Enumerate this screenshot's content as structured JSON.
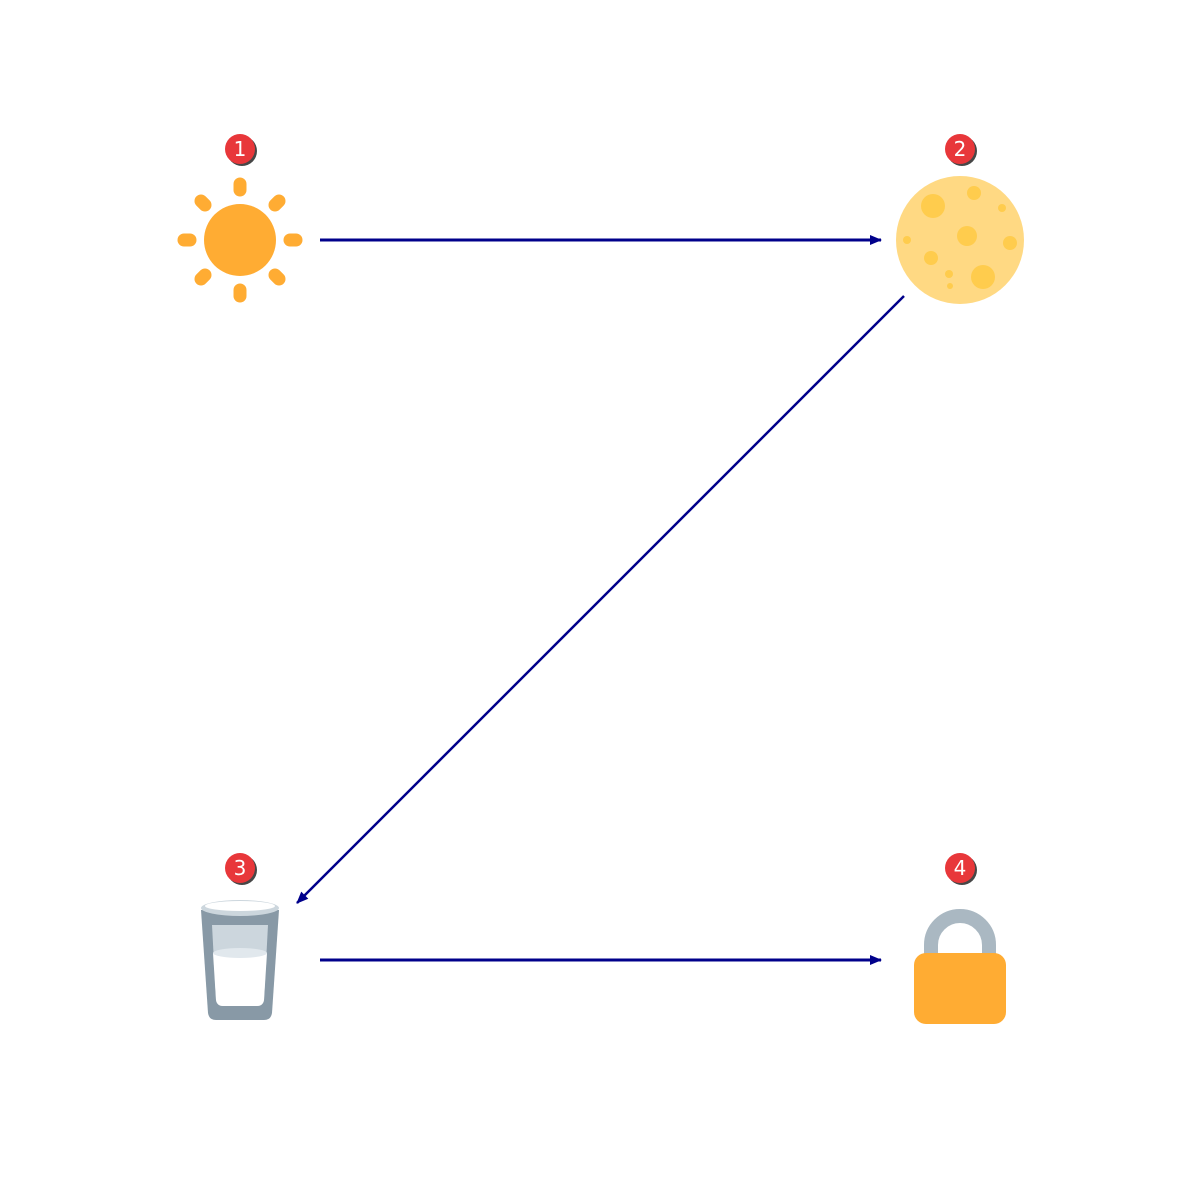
{
  "diagram": {
    "badges": [
      {
        "number": "1"
      },
      {
        "number": "2"
      },
      {
        "number": "3"
      },
      {
        "number": "4"
      }
    ],
    "nodes": [
      {
        "icon": "sun-icon"
      },
      {
        "icon": "moon-icon"
      },
      {
        "icon": "glass-of-milk-icon"
      },
      {
        "icon": "lock-icon"
      }
    ],
    "colors": {
      "arrow": "#00008b",
      "badge": "#e8373a",
      "sun": "#ffac33",
      "moon": "#ffd983",
      "moon_craters": "#ffcc4d",
      "glass_rim": "#ccd6dd",
      "glass_body": "#8899a6",
      "milk": "#ffffff",
      "lock_shackle": "#aab8c2",
      "lock_body": "#ffac33"
    }
  }
}
